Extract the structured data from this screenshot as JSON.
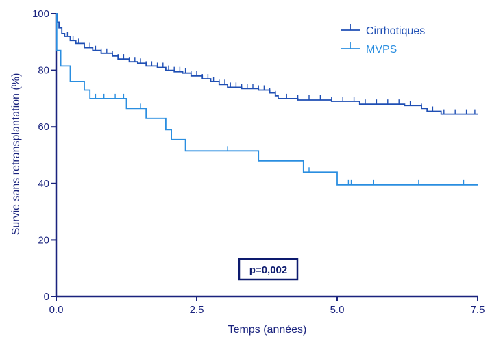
{
  "chart_data": {
    "type": "line",
    "subtype": "kaplan-meier",
    "title": "",
    "xlabel": "Temps (années)",
    "ylabel": "Survie sans retransplantation (%)",
    "xlim": [
      0,
      7.5
    ],
    "ylim": [
      0,
      100
    ],
    "x_ticks": [
      "0.0",
      "2.5",
      "5.0",
      "7.5"
    ],
    "y_ticks": [
      "0",
      "20",
      "40",
      "60",
      "80",
      "100"
    ],
    "grid": false,
    "legend_position": "top-right",
    "annotation": "p=0,002",
    "series": [
      {
        "name": "Cirrhotiques",
        "color": "#1f4fb4",
        "steps": [
          [
            0,
            100
          ],
          [
            0.02,
            97
          ],
          [
            0.05,
            95
          ],
          [
            0.1,
            93
          ],
          [
            0.15,
            92
          ],
          [
            0.25,
            90.5
          ],
          [
            0.35,
            89.5
          ],
          [
            0.5,
            88
          ],
          [
            0.65,
            87
          ],
          [
            0.8,
            86
          ],
          [
            1.0,
            85
          ],
          [
            1.1,
            84
          ],
          [
            1.3,
            83
          ],
          [
            1.45,
            82.5
          ],
          [
            1.6,
            81.5
          ],
          [
            1.8,
            81
          ],
          [
            1.95,
            80
          ],
          [
            2.1,
            79.5
          ],
          [
            2.25,
            79
          ],
          [
            2.4,
            78
          ],
          [
            2.6,
            77
          ],
          [
            2.75,
            76
          ],
          [
            2.9,
            75
          ],
          [
            3.05,
            74
          ],
          [
            3.3,
            73.5
          ],
          [
            3.6,
            73
          ],
          [
            3.8,
            72
          ],
          [
            3.9,
            71
          ],
          [
            3.95,
            70
          ],
          [
            4.3,
            69.5
          ],
          [
            4.9,
            69
          ],
          [
            5.4,
            68
          ],
          [
            6.2,
            67.5
          ],
          [
            6.5,
            66.5
          ],
          [
            6.6,
            65.5
          ],
          [
            6.85,
            64.5
          ],
          [
            7.5,
            64.5
          ]
        ],
        "censor_x": [
          0.1,
          0.2,
          0.3,
          0.4,
          0.5,
          0.6,
          0.7,
          0.8,
          0.9,
          1.0,
          1.1,
          1.2,
          1.3,
          1.4,
          1.5,
          1.6,
          1.7,
          1.8,
          1.9,
          2.0,
          2.1,
          2.2,
          2.3,
          2.4,
          2.5,
          2.6,
          2.7,
          2.8,
          2.9,
          3.0,
          3.1,
          3.2,
          3.3,
          3.4,
          3.5,
          3.6,
          3.7,
          3.8,
          3.9,
          4.1,
          4.3,
          4.5,
          4.7,
          4.9,
          5.1,
          5.3,
          5.5,
          5.7,
          5.9,
          6.1,
          6.3,
          6.5,
          6.7,
          6.9,
          7.1,
          7.3,
          7.45
        ]
      },
      {
        "name": "MVPS",
        "color": "#2a8ee0",
        "steps": [
          [
            0,
            100
          ],
          [
            0.01,
            87
          ],
          [
            0.08,
            81.5
          ],
          [
            0.25,
            76
          ],
          [
            0.5,
            73
          ],
          [
            0.6,
            70
          ],
          [
            1.25,
            66.5
          ],
          [
            1.6,
            63
          ],
          [
            1.95,
            59
          ],
          [
            2.05,
            55.5
          ],
          [
            2.3,
            51.5
          ],
          [
            3.6,
            48
          ],
          [
            4.4,
            44
          ],
          [
            5.0,
            39.5
          ],
          [
            7.5,
            39.5
          ]
        ],
        "censor_x": [
          0.7,
          0.85,
          1.05,
          1.2,
          1.5,
          3.05,
          4.5,
          5.2,
          5.25,
          5.65,
          6.45,
          7.25
        ]
      }
    ]
  }
}
